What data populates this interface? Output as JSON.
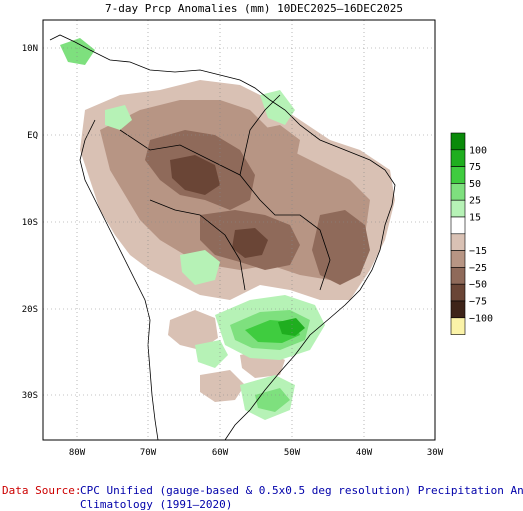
{
  "title": "7-day Prcp Anomalies (mm) 10DEC2025–16DEC2025",
  "lat_labels": [
    "10N",
    "EQ",
    "10S",
    "20S",
    "30S"
  ],
  "lon_labels": [
    "80W",
    "70W",
    "60W",
    "50W",
    "40W",
    "30W"
  ],
  "legend": {
    "items": [
      {
        "label": "100",
        "color": "#0a8a0a"
      },
      {
        "label": "75",
        "color": "#1fae1f"
      },
      {
        "label": "50",
        "color": "#3fcc3f"
      },
      {
        "label": "25",
        "color": "#7ee07e"
      },
      {
        "label": "15",
        "color": "#b6f2b6"
      },
      {
        "label": "",
        "color": "#ffffff"
      },
      {
        "label": "−15",
        "color": "#d9c1b4"
      },
      {
        "label": "−25",
        "color": "#b79584"
      },
      {
        "label": "−50",
        "color": "#8f6a5a"
      },
      {
        "label": "−75",
        "color": "#6a4536"
      },
      {
        "label": "−100",
        "color": "#3e2419"
      },
      {
        "label": "",
        "color": "#fbf3a8"
      }
    ]
  },
  "footer": {
    "source_label": "Data Source:",
    "source_text": "CPC Unified (gauge-based & 0.5x0.5 deg resolution) Precipitation Analysis",
    "climatology": "Climatology (1991–2020)"
  },
  "colors": {
    "source_label": "#cc0000",
    "source_text": "#0000aa"
  }
}
